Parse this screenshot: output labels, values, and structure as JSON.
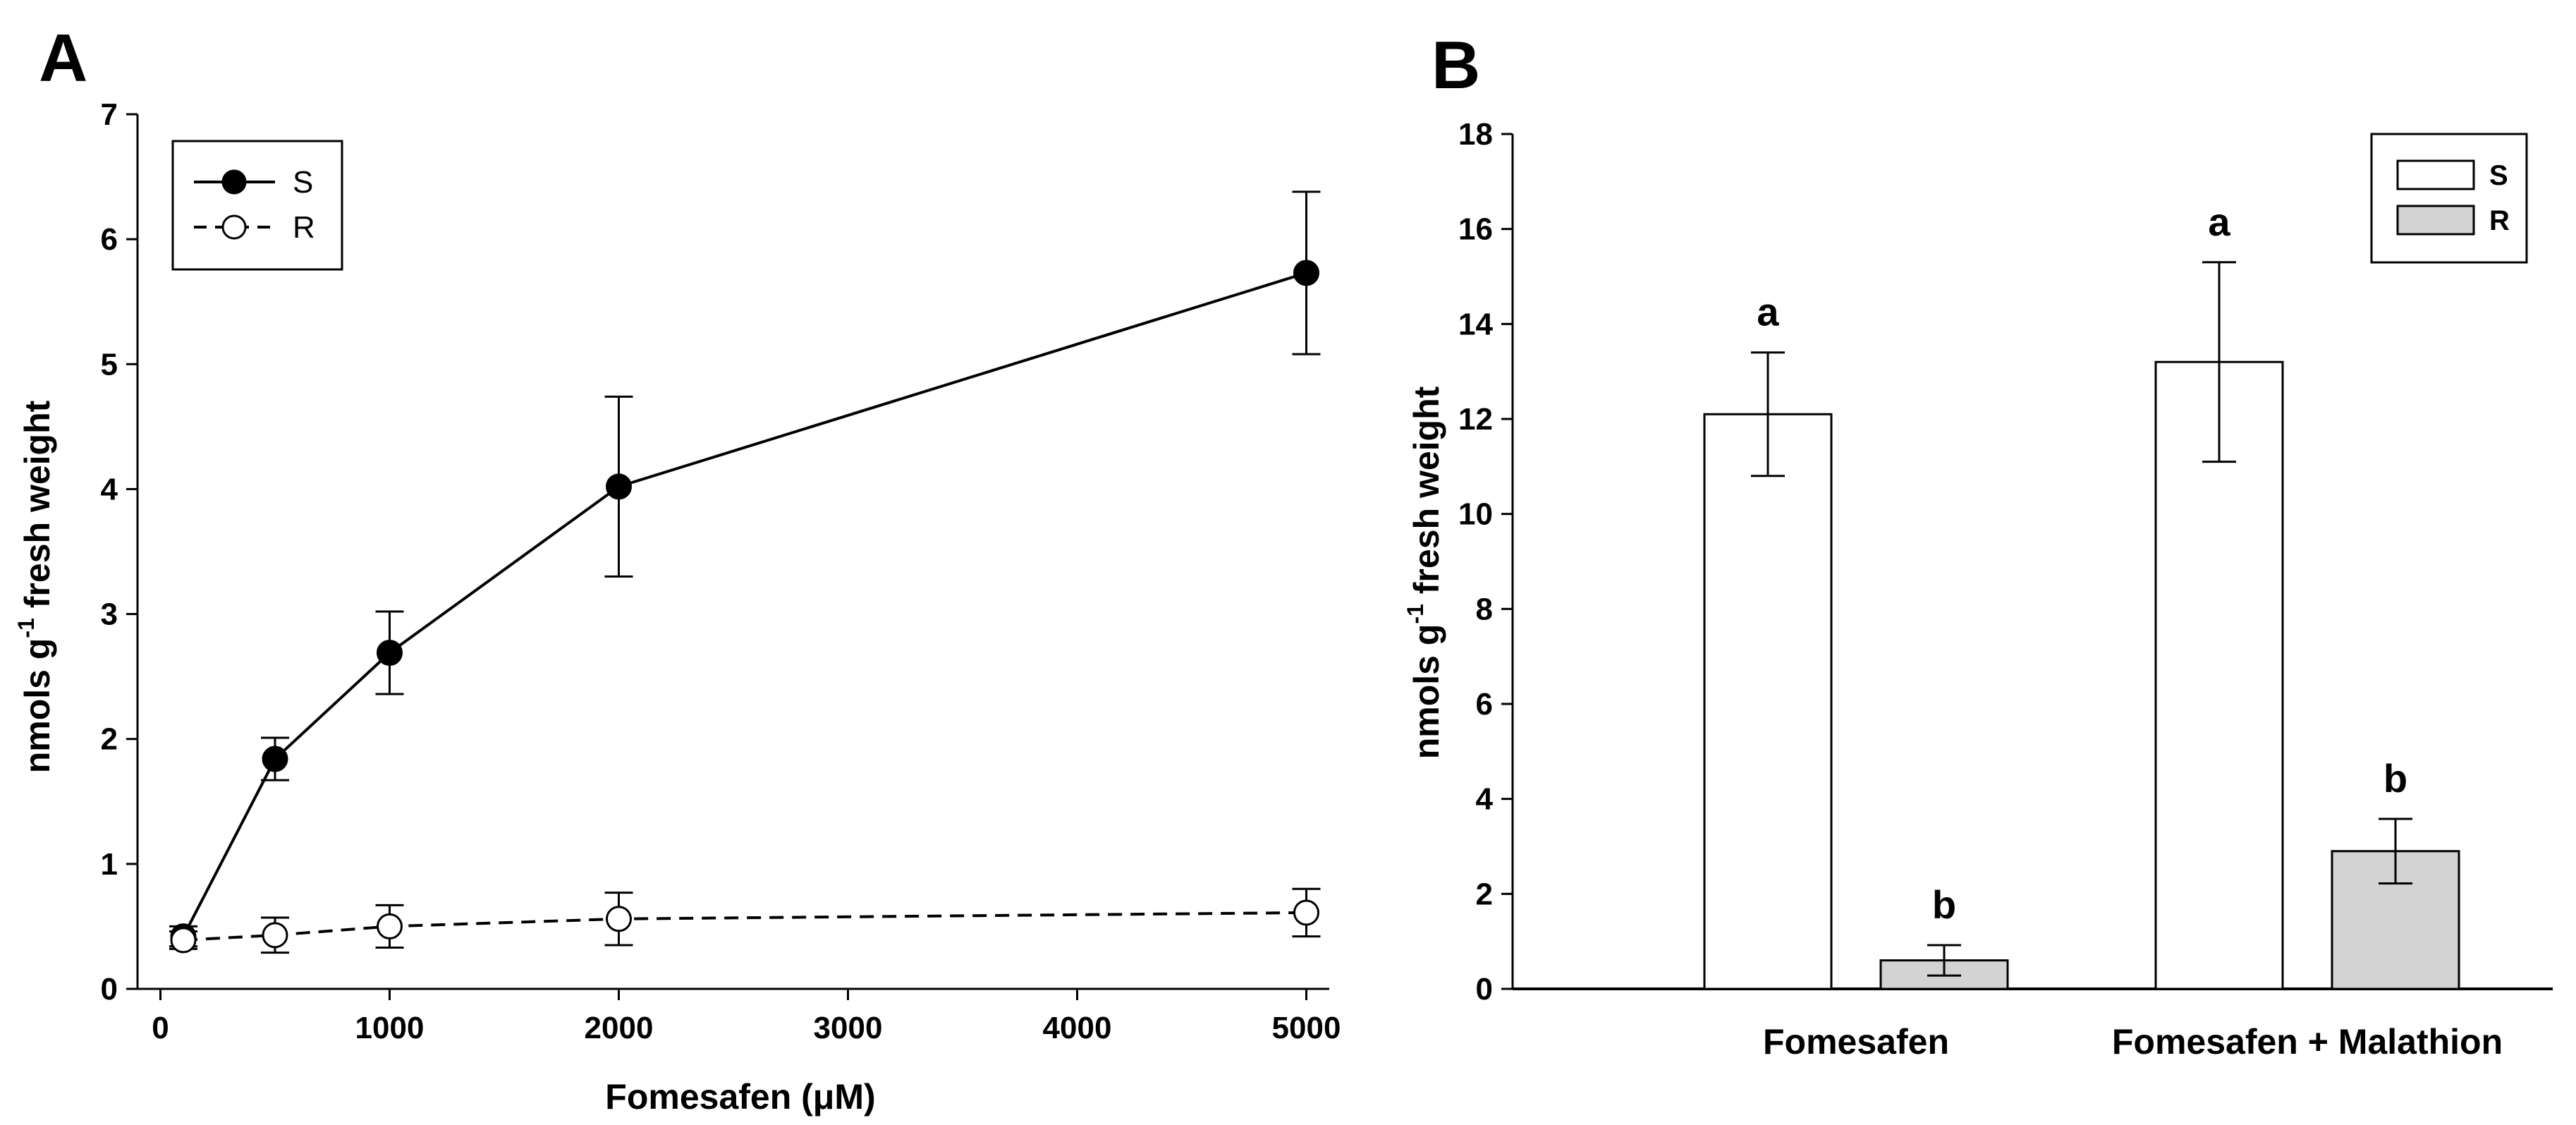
{
  "chart_data": [
    {
      "type": "line",
      "panel": "A",
      "xlabel": "Fomesafen (μM)",
      "ylabel_main": "nmols g",
      "ylabel_sup": "-1",
      "ylabel_rest": " fresh weight",
      "xlim": [
        -100,
        5100
      ],
      "ylim": [
        0,
        7
      ],
      "xticks": [
        0,
        1000,
        2000,
        3000,
        4000,
        5000
      ],
      "xtick_labels": [
        "0",
        "1000",
        "2000",
        "3000",
        "4000",
        "5000"
      ],
      "yticks": [
        0,
        1,
        2,
        3,
        4,
        5,
        6,
        7
      ],
      "ytick_labels": [
        "0",
        "1",
        "2",
        "3",
        "4",
        "5",
        "6",
        "7"
      ],
      "legend_position": "top-left",
      "series": [
        {
          "name": "S",
          "marker": "filled-circle",
          "line": "solid",
          "x": [
            100,
            500,
            1000,
            2000,
            5000
          ],
          "values": [
            0.42,
            1.84,
            2.69,
            4.02,
            5.73
          ],
          "errors": [
            0.08,
            0.17,
            0.33,
            0.72,
            0.65
          ]
        },
        {
          "name": "R",
          "marker": "open-circle",
          "line": "dashed",
          "x": [
            100,
            500,
            1000,
            2000,
            5000
          ],
          "values": [
            0.39,
            0.43,
            0.5,
            0.56,
            0.61
          ],
          "errors": [
            0.07,
            0.14,
            0.17,
            0.21,
            0.19
          ]
        }
      ]
    },
    {
      "type": "bar",
      "panel": "B",
      "categories": [
        "Fomesafen",
        "Fomesafen + Malathion"
      ],
      "ylabel_main": "nmols g",
      "ylabel_sup": "-1",
      "ylabel_rest": " fresh weight",
      "ylim": [
        0,
        18
      ],
      "yticks": [
        0,
        2,
        4,
        6,
        8,
        10,
        12,
        14,
        16,
        18
      ],
      "ytick_labels": [
        "0",
        "2",
        "4",
        "6",
        "8",
        "10",
        "12",
        "14",
        "16",
        "18"
      ],
      "legend_position": "top-right",
      "series": [
        {
          "name": "S",
          "color": "#ffffff",
          "values": [
            12.1,
            13.2
          ],
          "errors": [
            1.3,
            2.1
          ],
          "letters": [
            "a",
            "a"
          ]
        },
        {
          "name": "R",
          "color": "#d3d3d3",
          "values": [
            0.6,
            2.9
          ],
          "errors": [
            0.32,
            0.68
          ],
          "letters": [
            "b",
            "b"
          ]
        }
      ]
    }
  ]
}
